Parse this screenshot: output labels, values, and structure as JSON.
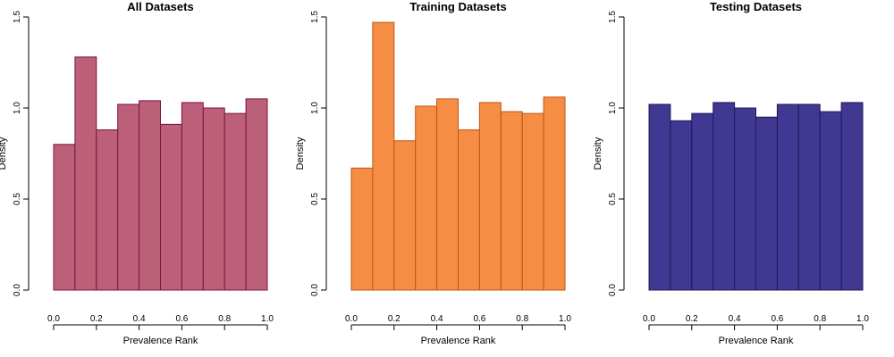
{
  "chart_data": [
    {
      "type": "bar",
      "title": "All Datasets",
      "xlabel": "Prevalence Rank",
      "ylabel": "Density",
      "xlim": [
        0,
        1
      ],
      "ylim": [
        0,
        1.5
      ],
      "x_ticks": [
        "0.0",
        "0.2",
        "0.4",
        "0.6",
        "0.8",
        "1.0"
      ],
      "y_ticks": [
        "0.0",
        "0.5",
        "1.0",
        "1.5"
      ],
      "bin_edges": [
        0,
        0.1,
        0.2,
        0.3,
        0.4,
        0.5,
        0.6,
        0.7,
        0.8,
        0.9,
        1.0
      ],
      "values": [
        0.8,
        1.28,
        0.88,
        1.02,
        1.04,
        0.91,
        1.03,
        1.0,
        0.97,
        1.05
      ],
      "fill_color": "#bc607a",
      "edge_color": "#7a1442"
    },
    {
      "type": "bar",
      "title": "Training Datasets",
      "xlabel": "Prevalence Rank",
      "ylabel": "Density",
      "xlim": [
        0,
        1
      ],
      "ylim": [
        0,
        1.5
      ],
      "x_ticks": [
        "0.0",
        "0.2",
        "0.4",
        "0.6",
        "0.8",
        "1.0"
      ],
      "y_ticks": [
        "0.0",
        "0.5",
        "1.0",
        "1.5"
      ],
      "bin_edges": [
        0,
        0.1,
        0.2,
        0.3,
        0.4,
        0.5,
        0.6,
        0.7,
        0.8,
        0.9,
        1.0
      ],
      "values": [
        0.67,
        1.47,
        0.82,
        1.01,
        1.05,
        0.88,
        1.03,
        0.98,
        0.97,
        1.06
      ],
      "fill_color": "#f68d45",
      "edge_color": "#c25413"
    },
    {
      "type": "bar",
      "title": "Testing Datasets",
      "xlabel": "Prevalence Rank",
      "ylabel": "Density",
      "xlim": [
        0,
        1
      ],
      "ylim": [
        0,
        1.5
      ],
      "x_ticks": [
        "0.0",
        "0.2",
        "0.4",
        "0.6",
        "0.8",
        "1.0"
      ],
      "y_ticks": [
        "0.0",
        "0.5",
        "1.0",
        "1.5"
      ],
      "bin_edges": [
        0,
        0.1,
        0.2,
        0.3,
        0.4,
        0.5,
        0.6,
        0.7,
        0.8,
        0.9,
        1.0
      ],
      "values": [
        1.02,
        0.93,
        0.97,
        1.03,
        1.0,
        0.95,
        1.02,
        1.02,
        0.98,
        1.03
      ],
      "fill_color": "#413891",
      "edge_color": "#1f1a5c"
    }
  ]
}
